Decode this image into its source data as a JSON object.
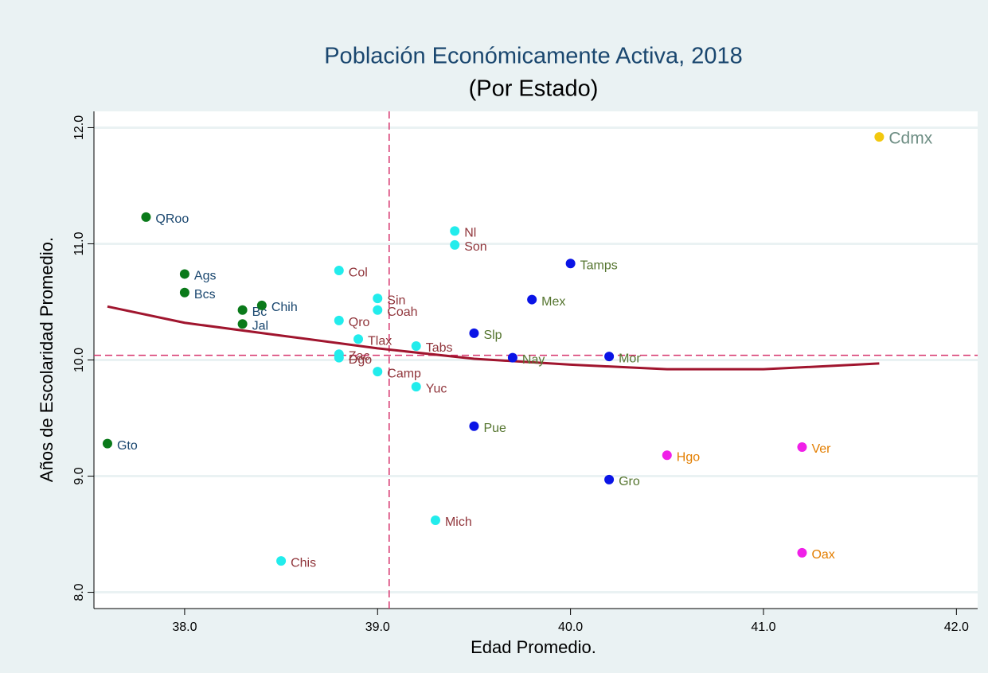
{
  "chart_data": {
    "type": "scatter",
    "title": "Población Económicamente Activa, 2018",
    "subtitle": "(Por Estado)",
    "xlabel": "Edad Promedio.",
    "ylabel": "Años de Escolaridad Promedio.",
    "xlim": [
      37.53,
      42.11
    ],
    "ylim": [
      7.86,
      12.14
    ],
    "xticks": [
      {
        "value": 38,
        "label": "38.0"
      },
      {
        "value": 39,
        "label": "39.0"
      },
      {
        "value": 40,
        "label": "40.0"
      },
      {
        "value": 41,
        "label": "41.0"
      },
      {
        "value": 42,
        "label": "42.0"
      }
    ],
    "yticks": [
      {
        "value": 8,
        "label": "8.0"
      },
      {
        "value": 9,
        "label": "9.0"
      },
      {
        "value": 10,
        "label": "10.0"
      },
      {
        "value": 11,
        "label": "11.0"
      },
      {
        "value": 12,
        "label": "12.0"
      }
    ],
    "grid": true,
    "series": [
      {
        "color": "#0a7a1a",
        "label_color": "#1a476f",
        "labels": [
          "QRoo",
          "Ags",
          "Bcs",
          "Bc",
          "Chih",
          "Jal",
          "Gto"
        ],
        "x": [
          37.8,
          38.0,
          38.0,
          38.3,
          38.4,
          38.3,
          37.6
        ],
        "values": [
          11.23,
          10.74,
          10.58,
          10.43,
          10.47,
          10.31,
          9.28
        ]
      },
      {
        "color": "#22ecec",
        "label_color": "#90353b",
        "labels": [
          "Col",
          "Sin",
          "Coah",
          "Qro",
          "Tlax",
          "Zac",
          "Dgo",
          "Camp",
          "Tabs",
          "Yuc",
          "Nl",
          "Son",
          "Mich",
          "Chis"
        ],
        "x": [
          38.8,
          39.0,
          39.0,
          38.8,
          38.9,
          38.8,
          38.8,
          39.0,
          39.2,
          39.2,
          39.4,
          39.4,
          39.3,
          38.5
        ],
        "values": [
          10.77,
          10.53,
          10.43,
          10.34,
          10.18,
          10.05,
          10.02,
          9.9,
          10.12,
          9.77,
          11.11,
          10.99,
          8.62,
          8.27
        ]
      },
      {
        "color": "#0a14e6",
        "label_color": "#55752f",
        "labels": [
          "Tamps",
          "Mex",
          "Slp",
          "Nay",
          "Mor",
          "Pue",
          "Gro"
        ],
        "x": [
          40.0,
          39.8,
          39.5,
          39.7,
          40.2,
          39.5,
          40.2
        ],
        "values": [
          10.83,
          10.52,
          10.23,
          10.02,
          10.03,
          9.43,
          8.97
        ]
      },
      {
        "color": "#f020e8",
        "label_color": "#e37e00",
        "labels": [
          "Hgo",
          "Ver",
          "Oax"
        ],
        "x": [
          40.5,
          41.2,
          41.2
        ],
        "values": [
          9.18,
          9.25,
          8.34
        ]
      },
      {
        "color": "#f2c80f",
        "label_color": "#6e8e84",
        "labels": [
          "Cdmx"
        ],
        "x": [
          41.6
        ],
        "values": [
          11.92
        ]
      }
    ],
    "fit": {
      "color": "#a0152e",
      "x": [
        37.6,
        38.0,
        38.5,
        39.0,
        39.5,
        40.0,
        40.5,
        41.0,
        41.6
      ],
      "values": [
        10.46,
        10.32,
        10.21,
        10.1,
        10.01,
        9.96,
        9.92,
        9.92,
        9.97
      ]
    },
    "xline": 39.06,
    "yline": 10.04,
    "refline_color": "#d6336c"
  }
}
